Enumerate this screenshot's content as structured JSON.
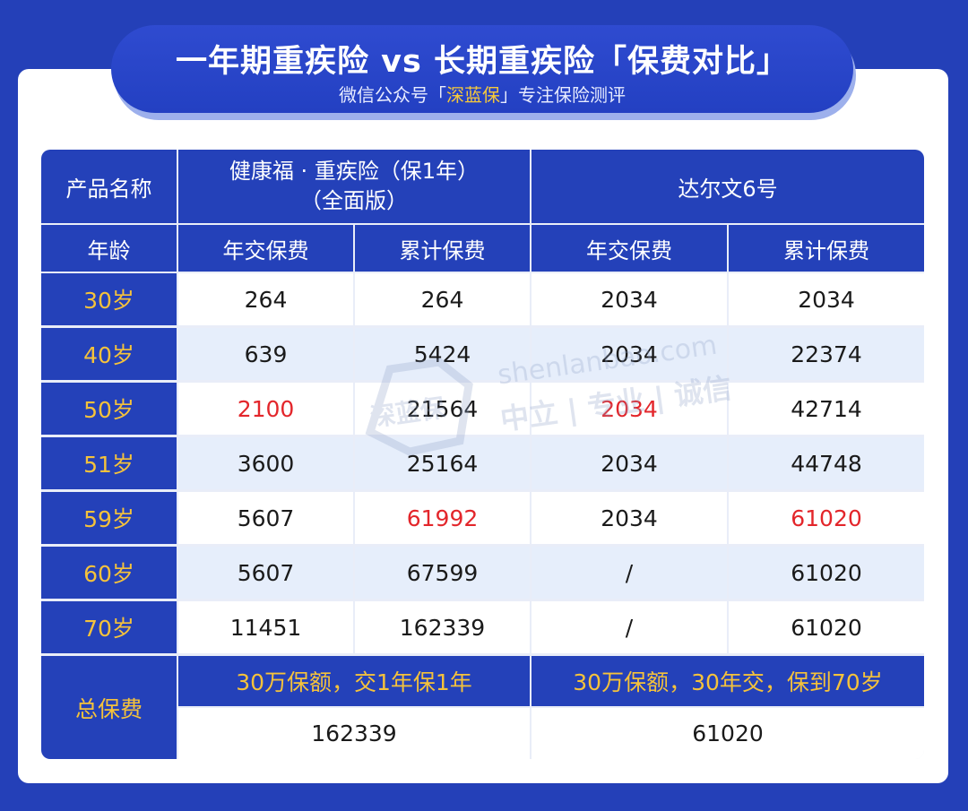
{
  "header": {
    "title": "一年期重疾险 vs 长期重疾险「保费对比」",
    "subtitle_prefix": "微信公众号「",
    "subtitle_highlight": "深蓝保",
    "subtitle_suffix": "」专注保险测评"
  },
  "table": {
    "product_name_label": "产品名称",
    "product1_line1": "健康福 · 重疾险（保1年）",
    "product1_line2": "（全面版）",
    "product2": "达尔文6号",
    "age_label": "年龄",
    "annual_premium": "年交保费",
    "cumulative_premium": "累计保费",
    "rows": [
      {
        "age": "30岁",
        "p1_annual": "264",
        "p1_total": "264",
        "p2_annual": "2034",
        "p2_total": "2034"
      },
      {
        "age": "40岁",
        "p1_annual": "639",
        "p1_total": "5424",
        "p2_annual": "2034",
        "p2_total": "22374"
      },
      {
        "age": "50岁",
        "p1_annual": "2100",
        "p1_total": "21564",
        "p2_annual": "2034",
        "p2_total": "42714"
      },
      {
        "age": "51岁",
        "p1_annual": "3600",
        "p1_total": "25164",
        "p2_annual": "2034",
        "p2_total": "44748"
      },
      {
        "age": "59岁",
        "p1_annual": "5607",
        "p1_total": "61992",
        "p2_annual": "2034",
        "p2_total": "61020"
      },
      {
        "age": "60岁",
        "p1_annual": "5607",
        "p1_total": "67599",
        "p2_annual": "/",
        "p2_total": "61020"
      },
      {
        "age": "70岁",
        "p1_annual": "11451",
        "p1_total": "162339",
        "p2_annual": "/",
        "p2_total": "61020"
      }
    ],
    "total_label": "总保费",
    "p1_terms": "30万保额，交1年保1年",
    "p2_terms": "30万保额，30年交，保到70岁",
    "p1_total_premium": "162339",
    "p2_total_premium": "61020"
  },
  "watermark": {
    "logo_text": "深蓝保",
    "domain": "shenlanbao.com",
    "slogan": "中立 | 专业 | 诚信"
  },
  "colors": {
    "brand_blue": "#2441b9",
    "highlight_yellow": "#f5c23b",
    "highlight_red": "#e3262b",
    "row_alt": "#e6eefb"
  }
}
